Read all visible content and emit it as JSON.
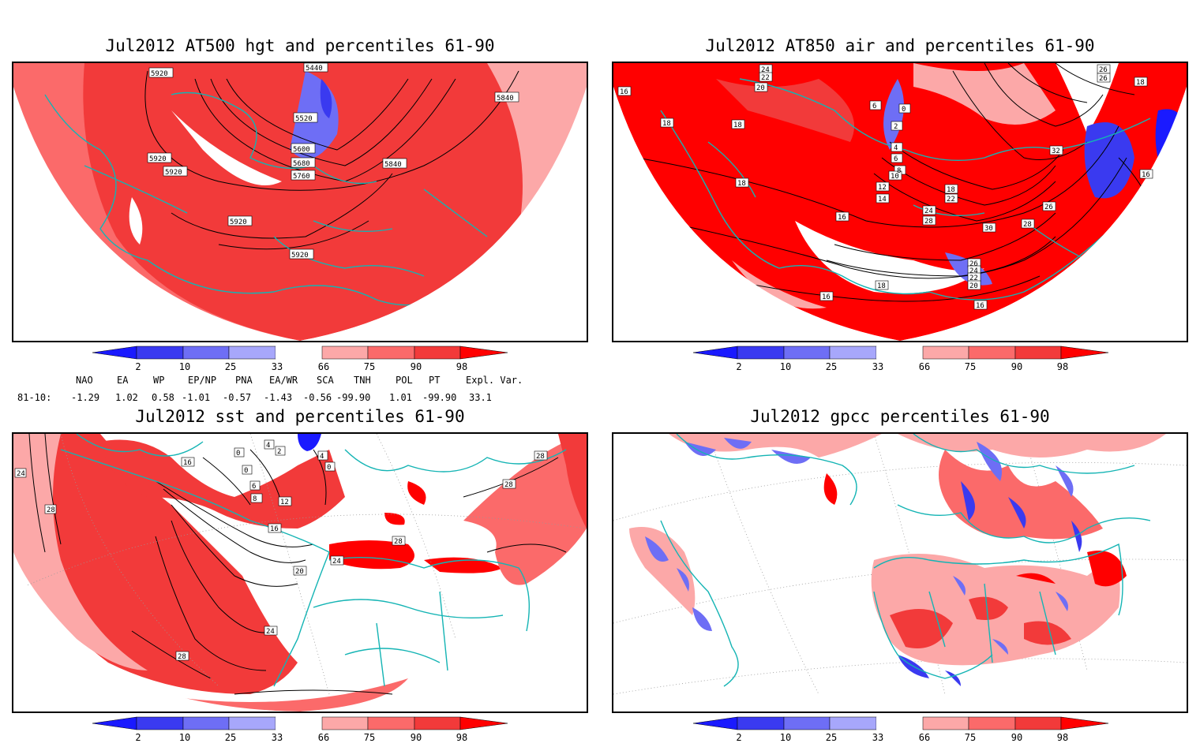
{
  "panels": [
    {
      "title": "Jul2012 AT500 hgt and percentiles 61-90",
      "contour_labels": [
        "5920",
        "5440",
        "5840",
        "5520",
        "5600",
        "5680",
        "5760",
        "5920",
        "5920",
        "5840",
        "5920",
        "5920"
      ]
    },
    {
      "title": "Jul2012 AT850 air and percentiles 61-90",
      "contour_labels": [
        "24",
        "22",
        "20",
        "16",
        "18",
        "18",
        "6",
        "0",
        "2",
        "4",
        "6",
        "8",
        "10",
        "12",
        "14",
        "16",
        "18",
        "18",
        "22",
        "24",
        "28",
        "30",
        "26",
        "28",
        "26",
        "24",
        "22",
        "20",
        "18",
        "16",
        "16",
        "16",
        "32",
        "18",
        "26",
        "26"
      ]
    },
    {
      "title": "Jul2012 sst and percentiles 61-90",
      "contour_labels": [
        "16",
        "0",
        "0",
        "4",
        "6",
        "2",
        "8",
        "12",
        "16",
        "20",
        "24",
        "28",
        "28",
        "28",
        "28",
        "24",
        "24",
        "4",
        "0",
        "28"
      ]
    },
    {
      "title": "Jul2012 gpcc percentiles 61-90",
      "contour_labels": []
    }
  ],
  "colorbar": {
    "ticks": [
      "2",
      "10",
      "25",
      "33",
      "66",
      "75",
      "90",
      "98"
    ],
    "colors": [
      "#1a1aff",
      "#3a3af0",
      "#6e6ef5",
      "#a7a7fb",
      "#ffffff",
      "#fca8a8",
      "#fb6a6a",
      "#f23a3a",
      "#ff0000"
    ]
  },
  "indices": {
    "names": [
      "NAO",
      "EA",
      "WP",
      "EP/NP",
      "PNA",
      "EA/WR",
      "SCA",
      "TNH",
      "POL",
      "PT",
      "Expl. Var."
    ],
    "row_label": "81-10:",
    "values": [
      "-1.29",
      "1.02",
      "0.58",
      "-1.01",
      "-0.57",
      "-1.43",
      "-0.56",
      "-99.90",
      "1.01",
      "-99.90",
      "33.1"
    ]
  }
}
